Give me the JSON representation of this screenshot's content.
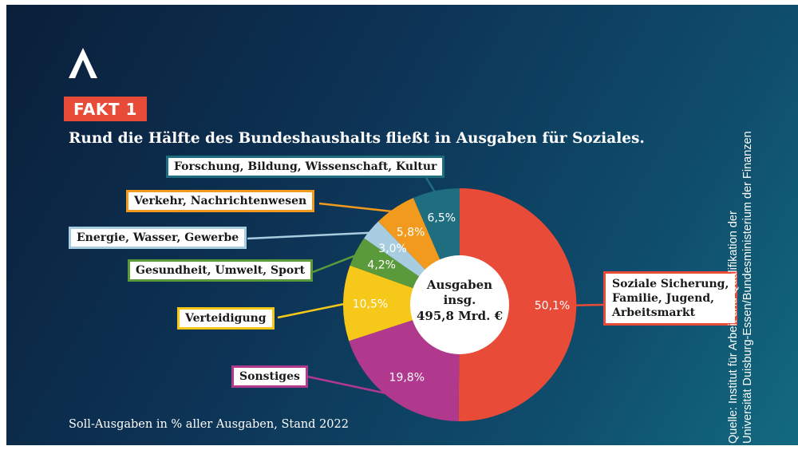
{
  "badge": "FAKT 1",
  "title": "Rund die Hälfte des Bundeshaushalts fließt in Ausgaben für Soziales.",
  "footnote": "Soll-Ausgaben in % aller Ausgaben, Stand 2022",
  "source": {
    "line1": "Quelle: Institut für Arbeit und Qualifikation der",
    "line2": "Universität Duisburg-Essen/Bundesministerium der Finanzen"
  },
  "center": {
    "line1": "Ausgaben",
    "line2": "insg.",
    "line3": "495,8 Mrd. €"
  },
  "chart_data": {
    "type": "pie",
    "donut": true,
    "slices": [
      {
        "label": "Soziale Sicherung, Familie, Jugend, Arbeitsmarkt",
        "label_lines": [
          "Soziale Sicherung,",
          "Familie, Jugend,",
          "Arbeitsmarkt"
        ],
        "value": 50.1,
        "display": "50,1%",
        "color": "#e84b37"
      },
      {
        "label": "Sonstiges",
        "label_lines": [
          "Sonstiges"
        ],
        "value": 19.8,
        "display": "19,8%",
        "color": "#b0398e"
      },
      {
        "label": "Verteidigung",
        "label_lines": [
          "Verteidigung"
        ],
        "value": 10.5,
        "display": "10,5%",
        "color": "#f6c81a"
      },
      {
        "label": "Gesundheit, Umwelt, Sport",
        "label_lines": [
          "Gesundheit, Umwelt, Sport"
        ],
        "value": 4.2,
        "display": "4,2%",
        "color": "#5b9a3a"
      },
      {
        "label": "Energie, Wasser, Gewerbe",
        "label_lines": [
          "Energie, Wasser, Gewerbe"
        ],
        "value": 3.0,
        "display": "3,0%",
        "color": "#a8cde0"
      },
      {
        "label": "Verkehr, Nachrichtenwesen",
        "label_lines": [
          "Verkehr, Nachrichtenwesen"
        ],
        "value": 5.8,
        "display": "5,8%",
        "color": "#f29a1d"
      },
      {
        "label": "Forschung, Bildung, Wissenschaft, Kultur",
        "label_lines": [
          "Forschung, Bildung, Wissenschaft, Kultur"
        ],
        "value": 6.5,
        "display": "6,5%",
        "color": "#1f6e80"
      }
    ],
    "unit": "%",
    "total": "495,8 Mrd. €"
  }
}
